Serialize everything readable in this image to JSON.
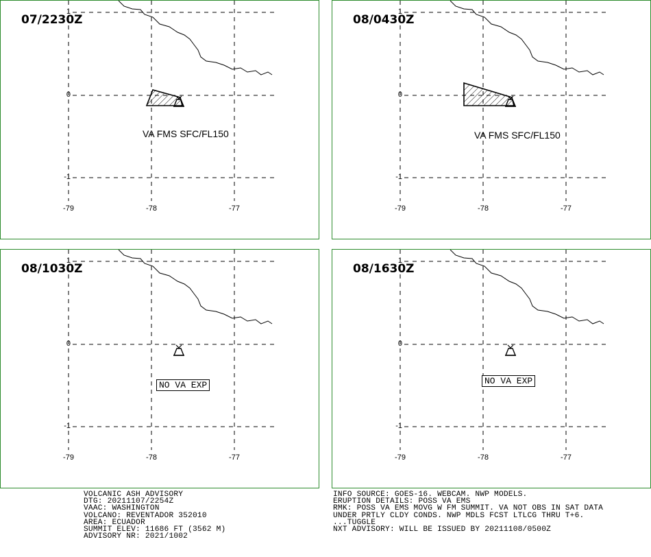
{
  "panels": [
    {
      "time": "07/2230Z",
      "label": "VA FMS SFC/FL150",
      "label_style": "plain",
      "ash_area": true
    },
    {
      "time": "08/0430Z",
      "label": "VA FMS SFC/FL150",
      "label_style": "plain",
      "ash_area": true
    },
    {
      "time": "08/1030Z",
      "label": "NO VA EXP",
      "label_style": "boxed",
      "ash_area": false
    },
    {
      "time": "08/1630Z",
      "label": "NO VA EXP",
      "label_style": "boxed",
      "ash_area": false
    }
  ],
  "axis": {
    "lat_labels": [
      "1",
      "0",
      "-1"
    ],
    "lon_labels": [
      "-79",
      "-78",
      "-77"
    ]
  },
  "footer_left": [
    "VOLCANIC ASH ADVISORY",
    "DTG: 20211107/2254Z",
    "VAAC: WASHINGTON",
    "VOLCANO: REVENTADOR 352010",
    "AREA: ECUADOR",
    "SUMMIT ELEV: 11686 FT (3562 M)",
    "ADVISORY NR: 2021/1002"
  ],
  "footer_right": [
    "INFO SOURCE: GOES-16. WEBCAM. NWP MODELS.",
    "ERUPTION DETAILS: POSS VA EMS",
    "RMK: POSS VA EMS MOVG W FM SUMMIT. VA NOT OBS IN SAT DATA",
    "UNDER PRTLY CLDY CONDS. NWP MDLS FCST LTLCG THRU T+6.",
    "...TUGGLE",
    "NXT ADVISORY: WILL BE ISSUED BY 20211108/0500Z"
  ],
  "colors": {
    "panel_border": "#2a8a2a",
    "grid": "#000000"
  }
}
